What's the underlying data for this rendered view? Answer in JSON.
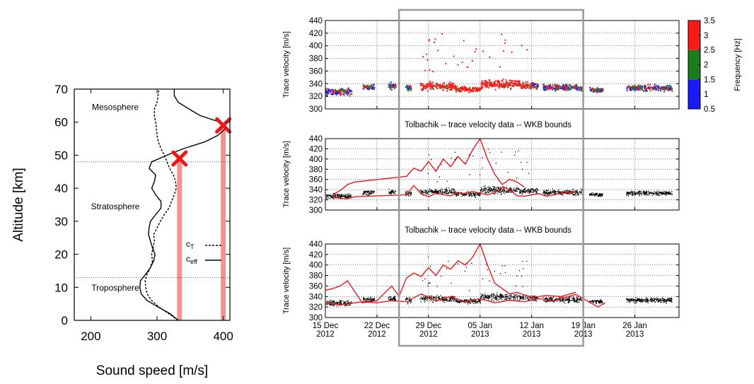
{
  "chart_data": [
    {
      "type": "line",
      "xlabel": "Sound speed [m/s]",
      "ylabel": "Altitude [km]",
      "xlim": [
        175,
        410
      ],
      "ylim": [
        0,
        70
      ],
      "xticks": [
        "200",
        "300",
        "400"
      ],
      "yticks": [
        "0",
        "10",
        "20",
        "30",
        "40",
        "50",
        "60",
        "70"
      ],
      "region_labels": [
        {
          "text": "Mesosphere",
          "x": 237,
          "y": 64.5
        },
        {
          "text": "Stratosphere",
          "x": 237,
          "y": 34.5
        },
        {
          "text": "Troposphere",
          "x": 237,
          "y": 9.8
        }
      ],
      "boundaries_km": [
        13,
        48
      ],
      "legend": {
        "position": "right-middle",
        "entries": [
          "cT",
          "ceff"
        ],
        "ct_main": "c",
        "ct_sub": "T",
        "ceff_main": "c",
        "ceff_sub": "eff"
      },
      "series": [
        {
          "name": "cT",
          "style": "dashed",
          "x": [
            332,
            318,
            303,
            292,
            285,
            283,
            282,
            285,
            290,
            293,
            292,
            294,
            296,
            295,
            300,
            305,
            311,
            318,
            322,
            326,
            329,
            328,
            325,
            319,
            315,
            311,
            306,
            302,
            300,
            299,
            298,
            296,
            296,
            300,
            303
          ],
          "y": [
            0,
            2,
            4,
            6,
            8,
            10,
            12,
            14,
            16,
            18,
            20,
            22,
            24,
            26,
            28,
            30,
            32,
            34,
            36,
            38,
            40,
            42,
            44,
            46,
            48,
            50,
            52,
            54,
            56,
            58,
            60,
            62,
            64,
            66,
            70
          ]
        },
        {
          "name": "ceff",
          "style": "solid",
          "x": [
            332,
            320,
            302,
            285,
            276,
            274,
            275,
            283,
            290,
            295,
            297,
            293,
            290,
            287,
            288,
            290,
            298,
            306,
            306,
            298,
            292,
            296,
            298,
            288,
            292,
            315,
            340,
            372,
            392,
            403,
            395,
            365,
            348,
            332,
            326,
            326
          ],
          "y": [
            0,
            2,
            4,
            6,
            8,
            10,
            12,
            14,
            16,
            18,
            20,
            22,
            24,
            26,
            28,
            30,
            32,
            34,
            36,
            38,
            40,
            42,
            44,
            46,
            48,
            50,
            52,
            54,
            56,
            58,
            60,
            62,
            64,
            66,
            68,
            70
          ]
        }
      ],
      "markers": [
        {
          "x": 334,
          "y": 49
        },
        {
          "x": 400,
          "y": 59
        }
      ],
      "vertical_bands_x": [
        334,
        400
      ]
    },
    {
      "type": "scatter",
      "title": "",
      "ylabel": "Trace velocity [m/s]",
      "ylim": [
        300,
        440
      ],
      "yticks": [
        "300",
        "320",
        "340",
        "360",
        "380",
        "400",
        "420",
        "440"
      ],
      "colorbar": {
        "label": "Frequency [Hz]",
        "ticks": [
          "0.5",
          "1",
          "1.5",
          "2",
          "2.5",
          "3",
          "3.5"
        ],
        "colors": [
          "#1a1aff",
          "#1a7f1a",
          "#ff1a1a"
        ]
      }
    },
    {
      "type": "scatter",
      "title": "Tolbachik -- trace velocity data -- WKB bounds",
      "ylabel": "Trace velocity [m/s]",
      "ylim": [
        300,
        440
      ],
      "yticks": [
        "300",
        "320",
        "340",
        "360",
        "380",
        "400",
        "420",
        "440"
      ]
    },
    {
      "type": "scatter",
      "title": "Tolbachik -- trace velocity data -- WKB bounds",
      "ylabel": "Trace velocity [m/s]",
      "ylim": [
        300,
        440
      ],
      "yticks": [
        "300",
        "320",
        "340",
        "360",
        "380",
        "400",
        "420",
        "440"
      ],
      "xticks": [
        {
          "date": "15 Dec",
          "year": "2012"
        },
        {
          "date": "22 Dec",
          "year": "2012"
        },
        {
          "date": "29 Dec",
          "year": "2012"
        },
        {
          "date": "05 Jan",
          "year": "2013"
        },
        {
          "date": "12 Jan",
          "year": "2013"
        },
        {
          "date": "19 Jan",
          "year": "2013"
        },
        {
          "date": "26 Jan",
          "year": "2013"
        }
      ]
    }
  ],
  "time_axis": {
    "xlim": [
      "2012-12-15",
      "2013-02-01"
    ],
    "vlines": [
      "2012-12-15",
      "2012-12-22",
      "2012-12-29",
      "2013-01-05",
      "2013-01-12",
      "2013-01-19",
      "2013-01-26"
    ],
    "highlight": {
      "start": "2012-12-25",
      "end": "2013-01-19"
    }
  },
  "wkb_panel2": {
    "upper": {
      "x": [
        "2012-12-16",
        "2012-12-17",
        "2012-12-18",
        "2012-12-19",
        "2012-12-26",
        "2012-12-27",
        "2012-12-28",
        "2012-12-29",
        "2012-12-30",
        "2012-12-31",
        "2013-01-01",
        "2013-01-02",
        "2013-01-03",
        "2013-01-04",
        "2013-01-05",
        "2013-01-06",
        "2013-01-07",
        "2013-01-08",
        "2013-01-09",
        "2013-01-10",
        "2013-01-11"
      ],
      "y": [
        330,
        338,
        350,
        355,
        366,
        382,
        376,
        395,
        376,
        400,
        385,
        405,
        390,
        418,
        440,
        400,
        370,
        350,
        360,
        355,
        345
      ]
    },
    "lower": {
      "x": [
        "2012-12-16",
        "2012-12-17",
        "2012-12-18",
        "2012-12-19",
        "2012-12-26",
        "2012-12-27",
        "2012-12-28",
        "2012-12-29",
        "2012-12-30",
        "2012-12-31",
        "2013-01-01",
        "2013-01-02",
        "2013-01-03",
        "2013-01-04",
        "2013-01-05",
        "2013-01-06",
        "2013-01-07",
        "2013-01-08",
        "2013-01-09",
        "2013-01-10",
        "2013-01-11",
        "2013-01-12",
        "2013-01-13",
        "2013-01-14",
        "2013-01-15",
        "2013-01-16",
        "2013-01-17",
        "2013-01-18"
      ],
      "y": [
        325,
        323,
        322,
        326,
        330,
        348,
        332,
        326,
        333,
        330,
        328,
        334,
        332,
        336,
        333,
        330,
        334,
        345,
        340,
        328,
        327,
        330,
        332,
        327,
        330,
        333,
        334,
        336
      ]
    }
  },
  "wkb_panel3": {
    "upper": {
      "x": [
        "2012-12-15",
        "2012-12-16",
        "2012-12-17",
        "2012-12-18",
        "2012-12-20",
        "2012-12-22",
        "2012-12-24",
        "2012-12-25",
        "2012-12-26",
        "2012-12-27",
        "2012-12-28",
        "2012-12-29",
        "2012-12-30",
        "2012-12-31",
        "2013-01-01",
        "2013-01-02",
        "2013-01-03",
        "2013-01-04",
        "2013-01-05",
        "2013-01-06",
        "2013-01-07",
        "2013-01-08",
        "2013-01-09",
        "2013-01-10",
        "2013-01-12",
        "2013-01-14",
        "2013-01-16",
        "2013-01-18"
      ],
      "y": [
        352,
        355,
        360,
        370,
        328,
        332,
        360,
        340,
        375,
        385,
        378,
        395,
        380,
        400,
        392,
        408,
        400,
        415,
        440,
        400,
        365,
        355,
        345,
        348,
        338,
        342,
        340,
        348
      ]
    },
    "lower": {
      "x": [
        "2012-12-15",
        "2012-12-16",
        "2012-12-17",
        "2012-12-18",
        "2012-12-20",
        "2012-12-22",
        "2012-12-24",
        "2012-12-26",
        "2012-12-28",
        "2012-12-30",
        "2013-01-01",
        "2013-01-03",
        "2013-01-05",
        "2013-01-07",
        "2013-01-09",
        "2013-01-11",
        "2013-01-13",
        "2013-01-15",
        "2013-01-17",
        "2013-01-18",
        "2013-01-21",
        "2013-01-22"
      ],
      "y": [
        328,
        326,
        324,
        326,
        330,
        328,
        332,
        330,
        345,
        332,
        340,
        330,
        336,
        328,
        333,
        330,
        336,
        332,
        340,
        344,
        320,
        328
      ]
    }
  }
}
